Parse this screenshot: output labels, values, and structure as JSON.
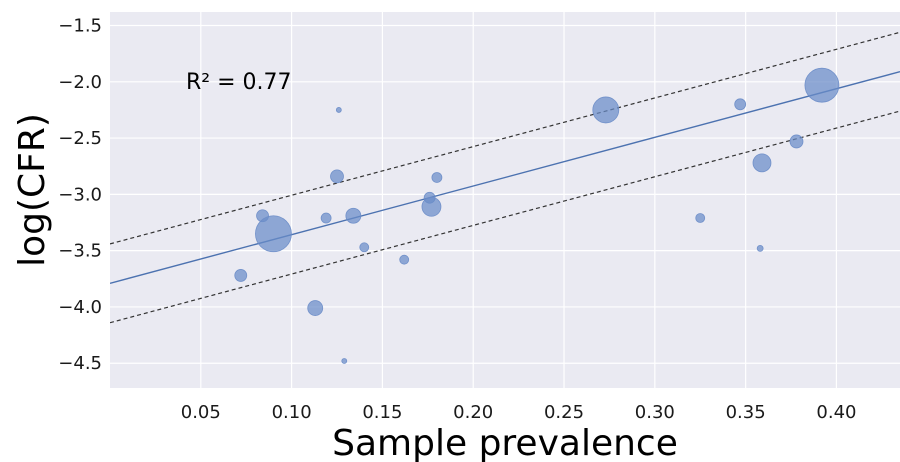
{
  "chart_data": {
    "type": "scatter",
    "xlabel": "Sample prevalence",
    "ylabel": "log(CFR)",
    "xlim": [
      0.0,
      0.435
    ],
    "ylim": [
      -4.72,
      -1.38
    ],
    "xticks": [
      0.05,
      0.1,
      0.15,
      0.2,
      0.25,
      0.3,
      0.35,
      0.4
    ],
    "xtick_labels": [
      "0.05",
      "0.10",
      "0.15",
      "0.20",
      "0.25",
      "0.30",
      "0.35",
      "0.40"
    ],
    "yticks": [
      -1.5,
      -2.0,
      -2.5,
      -3.0,
      -3.5,
      -4.0,
      -4.5
    ],
    "ytick_labels": [
      "−1.5",
      "−2.0",
      "−2.5",
      "−3.0",
      "−3.5",
      "−4.0",
      "−4.5"
    ],
    "grid": true,
    "annotation": "R² = 0.77",
    "points": [
      {
        "x": 0.072,
        "y": -3.72,
        "r": 6
      },
      {
        "x": 0.084,
        "y": -3.19,
        "r": 6
      },
      {
        "x": 0.09,
        "y": -3.35,
        "r": 18
      },
      {
        "x": 0.113,
        "y": -4.01,
        "r": 7.5
      },
      {
        "x": 0.119,
        "y": -3.21,
        "r": 5
      },
      {
        "x": 0.125,
        "y": -2.84,
        "r": 6.5
      },
      {
        "x": 0.126,
        "y": -2.25,
        "r": 2.5
      },
      {
        "x": 0.129,
        "y": -4.48,
        "r": 2.5
      },
      {
        "x": 0.134,
        "y": -3.19,
        "r": 7.5
      },
      {
        "x": 0.14,
        "y": -3.47,
        "r": 4.5
      },
      {
        "x": 0.162,
        "y": -3.58,
        "r": 4.5
      },
      {
        "x": 0.176,
        "y": -3.03,
        "r": 5.5
      },
      {
        "x": 0.177,
        "y": -3.11,
        "r": 9.5
      },
      {
        "x": 0.18,
        "y": -2.85,
        "r": 5
      },
      {
        "x": 0.273,
        "y": -2.25,
        "r": 13
      },
      {
        "x": 0.325,
        "y": -3.21,
        "r": 4.5
      },
      {
        "x": 0.347,
        "y": -2.2,
        "r": 5.5
      },
      {
        "x": 0.358,
        "y": -3.48,
        "r": 3
      },
      {
        "x": 0.359,
        "y": -2.72,
        "r": 9
      },
      {
        "x": 0.378,
        "y": -2.53,
        "r": 6.5
      },
      {
        "x": 0.392,
        "y": -2.03,
        "r": 17
      }
    ],
    "fit_line": {
      "x": [
        0.0,
        0.435
      ],
      "y": [
        -3.79,
        -1.91
      ]
    },
    "upper_band": {
      "x": [
        0.0,
        0.435
      ],
      "y": [
        -3.44,
        -1.56
      ]
    },
    "lower_band": {
      "x": [
        0.0,
        0.435
      ],
      "y": [
        -4.14,
        -2.26
      ]
    },
    "colors": {
      "background": "#eaeaf2",
      "grid": "#ffffff",
      "points": "#6a8cc8",
      "fit_line": "#4c72b0",
      "bands": "#333333"
    }
  }
}
